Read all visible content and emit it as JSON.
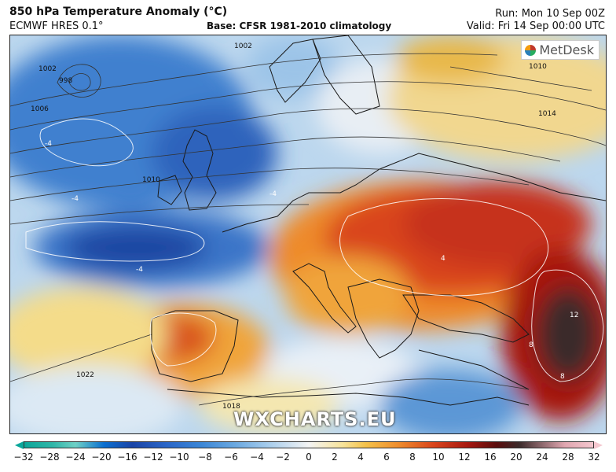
{
  "header": {
    "title": "850 hPa Temperature Anomaly (°C)",
    "model": "ECMWF HRES 0.1°",
    "base": "Base: CFSR 1981-2010 climatology",
    "run": "Run: Mon 10 Sep 00Z",
    "valid": "Valid: Fri 14 Sep 00:00 UTC"
  },
  "map": {
    "logo": "MetDesk",
    "watermark": "WXCHARTS.EU",
    "isobar_labels": [
      "1002",
      "998",
      "1002",
      "1006",
      "1010",
      "1014",
      "1022",
      "1018",
      "1010"
    ],
    "contour_labels": [
      "-4",
      "-4",
      "-4",
      "-4",
      "4",
      "8",
      "8",
      "12"
    ]
  },
  "colorbar": {
    "ticks": [
      "−32",
      "−28",
      "−24",
      "−20",
      "−16",
      "−12",
      "−10",
      "−8",
      "−6",
      "−4",
      "−2",
      "0",
      "2",
      "4",
      "6",
      "8",
      "10",
      "12",
      "16",
      "20",
      "24",
      "28",
      "32"
    ],
    "colors": {
      "cold_end": "#0aa79a",
      "deep_blue": "#1a44a6",
      "neutral": "#f4f4f4",
      "orange": "#ee8a2c",
      "dark_red": "#a61810",
      "warm_end": "#f4c7cf"
    }
  }
}
